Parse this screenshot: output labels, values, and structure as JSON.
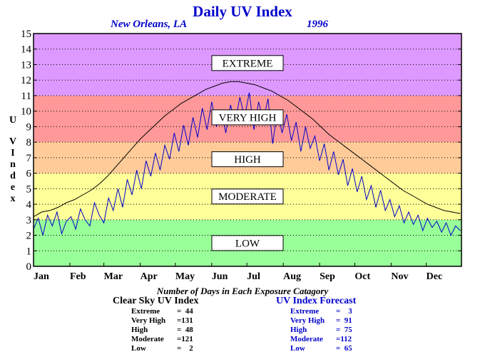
{
  "chart_data": {
    "type": "line",
    "title": "Daily UV Index",
    "location": "New Orleans, LA",
    "year": "1996",
    "ylabel": "UV Index",
    "ylim": [
      0,
      15
    ],
    "yticks": [
      0,
      1,
      2,
      3,
      4,
      5,
      6,
      7,
      8,
      9,
      10,
      11,
      12,
      13,
      14,
      15
    ],
    "xlabel_months": [
      "Jan",
      "Feb",
      "Mar",
      "Apr",
      "May",
      "Jun",
      "Jul",
      "Aug",
      "Sep",
      "Oct",
      "Nov",
      "Dec"
    ],
    "grid": "dotted horizontal",
    "bands": [
      {
        "label": "LOW",
        "from": 0,
        "to": 3,
        "color": "#99ff99"
      },
      {
        "label": "MODERATE",
        "from": 3,
        "to": 6,
        "color": "#ffff99"
      },
      {
        "label": "HIGH",
        "from": 6,
        "to": 8,
        "color": "#ffcc99"
      },
      {
        "label": "VERY HIGH",
        "from": 8,
        "to": 11,
        "color": "#ff9999"
      },
      {
        "label": "EXTREME",
        "from": 11,
        "to": 15,
        "color": "#dd99ff"
      }
    ],
    "series": [
      {
        "key": "clear",
        "color": "#000000",
        "x_day": [
          1,
          8,
          15,
          22,
          29,
          36,
          43,
          50,
          57,
          64,
          71,
          78,
          85,
          92,
          99,
          106,
          113,
          120,
          127,
          134,
          141,
          148,
          155,
          162,
          169,
          176,
          183,
          190,
          197,
          204,
          211,
          218,
          225,
          232,
          239,
          246,
          253,
          260,
          267,
          274,
          281,
          288,
          295,
          302,
          309,
          316,
          323,
          330,
          337,
          344,
          351,
          358,
          365
        ],
        "values": [
          3.2,
          3.5,
          3.6,
          3.8,
          4.1,
          4.3,
          4.6,
          4.9,
          5.3,
          5.8,
          6.4,
          7.0,
          7.6,
          8.2,
          8.7,
          9.2,
          9.7,
          10.1,
          10.5,
          10.8,
          11.1,
          11.4,
          11.6,
          11.8,
          11.9,
          11.9,
          11.8,
          11.7,
          11.5,
          11.3,
          11.0,
          10.7,
          10.3,
          9.9,
          9.5,
          9.0,
          8.5,
          8.1,
          7.7,
          7.3,
          6.9,
          6.5,
          6.1,
          5.7,
          5.3,
          4.9,
          4.6,
          4.3,
          4.0,
          3.8,
          3.6,
          3.5,
          3.4
        ]
      },
      {
        "key": "forecast",
        "color": "#0000cc",
        "x_day": [
          1,
          5,
          9,
          13,
          17,
          21,
          25,
          29,
          33,
          37,
          41,
          45,
          49,
          53,
          57,
          61,
          65,
          69,
          73,
          77,
          81,
          85,
          89,
          93,
          97,
          101,
          105,
          109,
          113,
          117,
          121,
          125,
          129,
          133,
          137,
          141,
          145,
          149,
          153,
          157,
          161,
          165,
          169,
          173,
          177,
          181,
          185,
          189,
          193,
          197,
          201,
          205,
          209,
          213,
          217,
          221,
          225,
          229,
          233,
          237,
          241,
          245,
          249,
          253,
          257,
          261,
          265,
          269,
          273,
          277,
          281,
          285,
          289,
          293,
          297,
          301,
          305,
          309,
          313,
          317,
          321,
          325,
          329,
          333,
          337,
          341,
          345,
          349,
          353,
          357,
          361,
          365
        ],
        "values": [
          2.4,
          3.1,
          2.0,
          3.3,
          2.6,
          3.5,
          2.1,
          2.9,
          3.2,
          2.4,
          3.7,
          3.0,
          2.6,
          4.1,
          3.3,
          2.8,
          4.4,
          3.6,
          5.0,
          3.8,
          5.6,
          4.6,
          6.2,
          5.0,
          6.8,
          5.8,
          7.3,
          6.2,
          7.8,
          6.9,
          8.6,
          7.4,
          9.1,
          7.8,
          9.6,
          8.3,
          10.2,
          8.8,
          10.6,
          9.0,
          10.1,
          8.6,
          10.4,
          9.3,
          10.9,
          9.6,
          11.2,
          8.8,
          10.6,
          9.4,
          10.8,
          7.9,
          10.0,
          8.6,
          9.8,
          8.1,
          9.3,
          7.4,
          9.0,
          7.6,
          8.4,
          6.8,
          7.9,
          6.2,
          7.4,
          5.9,
          6.9,
          5.2,
          6.3,
          4.8,
          5.8,
          4.3,
          5.2,
          3.8,
          4.9,
          3.6,
          4.3,
          3.2,
          3.9,
          2.8,
          3.5,
          2.7,
          3.3,
          2.3,
          3.1,
          2.5,
          2.9,
          2.2,
          2.8,
          2.0,
          2.6,
          2.3
        ]
      }
    ],
    "caption": "Number of Days in Each Exposure Catagory",
    "stats_clear": {
      "title": "Clear Sky UV Index",
      "rows": [
        {
          "label": "Extreme",
          "value": "=  44"
        },
        {
          "label": "Very High",
          "value": "=131"
        },
        {
          "label": "High",
          "value": "=  48"
        },
        {
          "label": "Moderate",
          "value": "=121"
        },
        {
          "label": "Low",
          "value": "=    2"
        }
      ]
    },
    "stats_forecast": {
      "title": "UV Index Forecast",
      "rows": [
        {
          "label": "Extreme",
          "value": "=    3"
        },
        {
          "label": "Very High",
          "value": "=  91"
        },
        {
          "label": "High",
          "value": "=  75"
        },
        {
          "label": "Moderate",
          "value": "=112"
        },
        {
          "label": "Low",
          "value": "=  65"
        }
      ]
    }
  }
}
